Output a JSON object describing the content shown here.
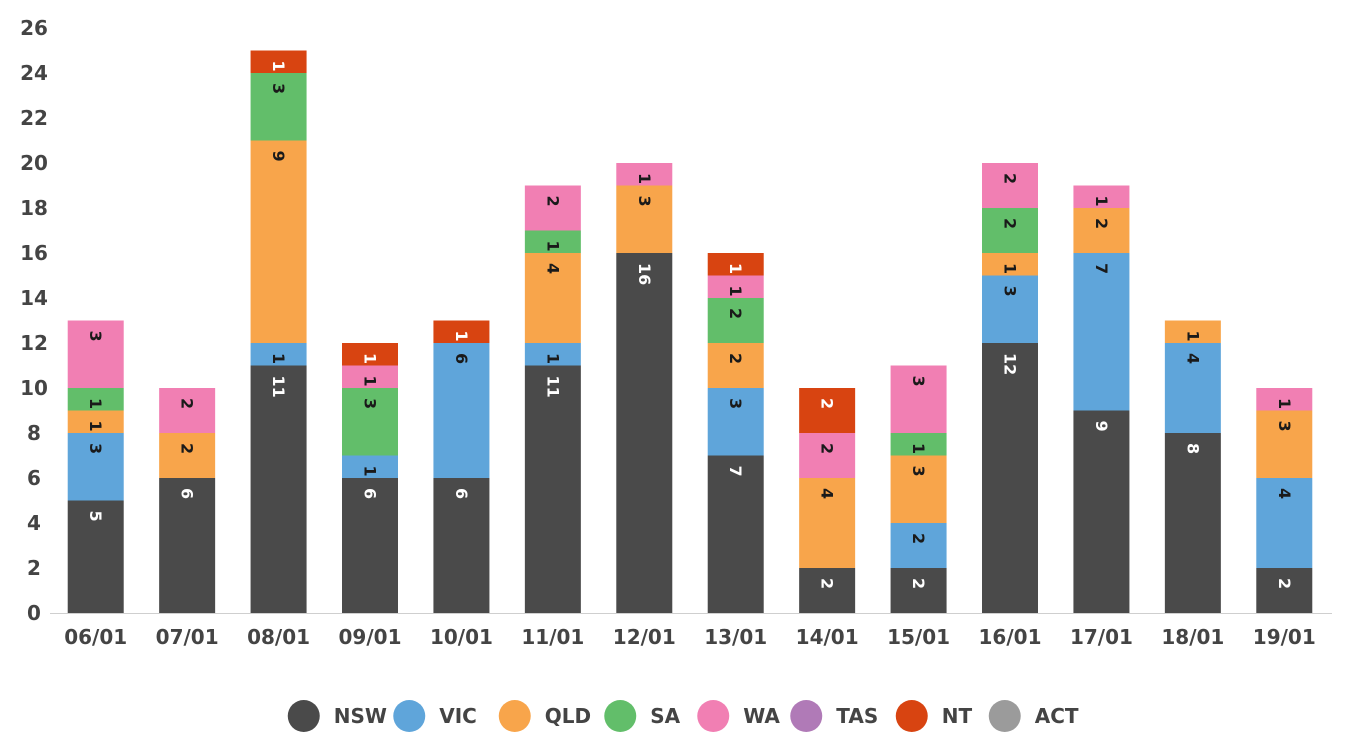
{
  "chart_data": {
    "type": "bar",
    "stacked": true,
    "title": "",
    "xlabel": "",
    "ylabel": "",
    "ylim": [
      0,
      26
    ],
    "yticks": [
      0,
      2,
      4,
      6,
      8,
      10,
      12,
      14,
      16,
      18,
      20,
      22,
      24,
      26
    ],
    "grid": false,
    "legend_position": "bottom",
    "categories": [
      "06/01",
      "07/01",
      "08/01",
      "09/01",
      "10/01",
      "11/01",
      "12/01",
      "13/01",
      "14/01",
      "15/01",
      "16/01",
      "17/01",
      "18/01",
      "19/01"
    ],
    "series": [
      {
        "name": "NSW",
        "color": "#4a4a4a",
        "label_color": "#ffffff",
        "values": [
          5,
          6,
          11,
          6,
          6,
          11,
          16,
          7,
          2,
          2,
          12,
          9,
          8,
          2
        ]
      },
      {
        "name": "VIC",
        "color": "#5fa5da",
        "label_color": "#1a1a1a",
        "values": [
          3,
          0,
          1,
          1,
          6,
          1,
          0,
          3,
          0,
          2,
          3,
          7,
          4,
          4
        ]
      },
      {
        "name": "QLD",
        "color": "#f8a54b",
        "label_color": "#1a1a1a",
        "values": [
          1,
          2,
          9,
          0,
          0,
          4,
          3,
          2,
          4,
          3,
          1,
          2,
          1,
          3
        ]
      },
      {
        "name": "SA",
        "color": "#62be6a",
        "label_color": "#1a1a1a",
        "values": [
          1,
          0,
          3,
          3,
          0,
          1,
          0,
          2,
          0,
          1,
          2,
          0,
          0,
          0
        ]
      },
      {
        "name": "WA",
        "color": "#f17fb3",
        "label_color": "#1a1a1a",
        "values": [
          3,
          2,
          0,
          1,
          0,
          2,
          1,
          1,
          2,
          3,
          2,
          1,
          0,
          1
        ]
      },
      {
        "name": "TAS",
        "color": "#b07ab7",
        "label_color": "#1a1a1a",
        "values": [
          0,
          0,
          0,
          0,
          0,
          0,
          0,
          0,
          0,
          0,
          0,
          0,
          0,
          0
        ]
      },
      {
        "name": "NT",
        "color": "#d84411",
        "label_color": "#ffffff",
        "values": [
          0,
          0,
          1,
          1,
          1,
          0,
          0,
          1,
          2,
          0,
          0,
          0,
          0,
          0
        ]
      },
      {
        "name": "ACT",
        "color": "#9b9b9b",
        "label_color": "#1a1a1a",
        "values": [
          0,
          0,
          0,
          0,
          0,
          0,
          0,
          0,
          0,
          0,
          0,
          0,
          0,
          0
        ]
      }
    ]
  }
}
